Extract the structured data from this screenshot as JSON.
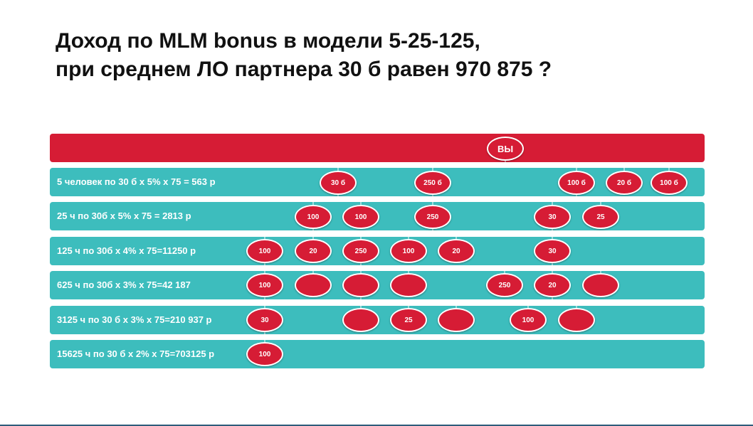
{
  "title": {
    "line1": "Доход по MLM bonus в модели 5-25-125,",
    "line2": "при среднем ЛО партнера 30 б  равен  970 875 ?"
  },
  "colors": {
    "red": "#d61c35",
    "teal": "#3dbdbd"
  },
  "rows": [
    {
      "label": "5 человек по 30 б х  5% х 75 = 563 р"
    },
    {
      "label": "25 ч по 30б х 5% х 75 = 2813 р"
    },
    {
      "label": "125 ч по 30б х 4% х 75=11250 р"
    },
    {
      "label": "625 ч по 30б х 3% х 75=42 187"
    },
    {
      "label": "3125 ч по 30 б х 3% х 75=210 937 р"
    },
    {
      "label": "15625 ч по 30 б х 2% х 75=703125 р"
    }
  ],
  "nodes": {
    "you": "ВЫ",
    "level1": [
      "30 б",
      "250 б",
      "100 б",
      "20 б",
      "100 б"
    ],
    "level2": [
      "100",
      "100",
      "250",
      "30",
      "25"
    ],
    "level3": [
      "100",
      "20",
      "250",
      "100",
      "20",
      "30"
    ],
    "level4": [
      "100",
      "",
      "",
      "",
      "250",
      "20",
      ""
    ],
    "level5": [
      "30",
      "",
      "25",
      "",
      "100",
      ""
    ],
    "level6": [
      "100"
    ]
  }
}
